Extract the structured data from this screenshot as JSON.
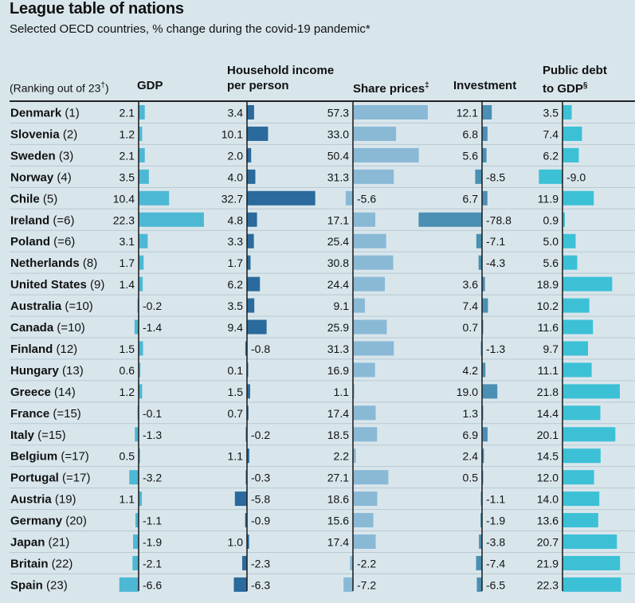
{
  "title": "League table of nations",
  "subtitle": "Selected OECD countries, % change during the covid-19 pandemic*",
  "headers": {
    "rank": "(Ranking out of 23",
    "rank_mark": "†",
    "rank_close": ")",
    "gdp": "GDP",
    "income_line1": "Household income",
    "income_line2": "per person",
    "share": "Share prices",
    "share_mark": "‡",
    "investment": "Investment",
    "debt_line1": "Public debt",
    "debt_line2": "to GDP",
    "debt_mark": "§"
  },
  "colors": {
    "background": "#d8e6ec",
    "gdp": "#4db8d4",
    "income": "#2a6a9c",
    "share": "#8ab9d6",
    "investment": "#4a8fb4",
    "debt": "#3cc0d6",
    "axis": "#222222",
    "row_rule": "#b9c9d2"
  },
  "chart_data": {
    "type": "table",
    "columns": [
      "GDP",
      "Household income per person",
      "Share prices",
      "Investment",
      "Public debt to GDP"
    ],
    "rows": [
      {
        "country": "Denmark",
        "rank": "(1)",
        "gdp": "2.1",
        "income": "3.4",
        "share": "57.3",
        "investment": "12.1",
        "debt": "3.5"
      },
      {
        "country": "Slovenia",
        "rank": "(2)",
        "gdp": "1.2",
        "income": "10.1",
        "share": "33.0",
        "investment": "6.8",
        "debt": "7.4"
      },
      {
        "country": "Sweden",
        "rank": "(3)",
        "gdp": "2.1",
        "income": "2.0",
        "share": "50.4",
        "investment": "5.6",
        "debt": "6.2"
      },
      {
        "country": "Norway",
        "rank": "(4)",
        "gdp": "3.5",
        "income": "4.0",
        "share": "31.3",
        "investment": "-8.5",
        "debt": "-9.0"
      },
      {
        "country": "Chile",
        "rank": "(5)",
        "gdp": "10.4",
        "income": "32.7",
        "share": "-5.6",
        "investment": "6.7",
        "debt": "11.9"
      },
      {
        "country": "Ireland",
        "rank": "(=6)",
        "gdp": "22.3",
        "income": "4.8",
        "share": "17.1",
        "investment": "-78.8",
        "debt": "0.9"
      },
      {
        "country": "Poland",
        "rank": "(=6)",
        "gdp": "3.1",
        "income": "3.3",
        "share": "25.4",
        "investment": "-7.1",
        "debt": "5.0"
      },
      {
        "country": "Netherlands",
        "rank": "(8)",
        "gdp": "1.7",
        "income": "1.7",
        "share": "30.8",
        "investment": "-4.3",
        "debt": "5.6"
      },
      {
        "country": "United States",
        "rank": "(9)",
        "gdp": "1.4",
        "income": "6.2",
        "share": "24.4",
        "investment": "3.6",
        "debt": "18.9"
      },
      {
        "country": "Australia",
        "rank": "(=10)",
        "gdp": "-0.2",
        "income": "3.5",
        "share": "9.1",
        "investment": "7.4",
        "debt": "10.2"
      },
      {
        "country": "Canada",
        "rank": "(=10)",
        "gdp": "-1.4",
        "income": "9.4",
        "share": "25.9",
        "investment": "0.7",
        "debt": "11.6"
      },
      {
        "country": "Finland",
        "rank": "(12)",
        "gdp": "1.5",
        "income": "-0.8",
        "share": "31.3",
        "investment": "-1.3",
        "debt": "9.7"
      },
      {
        "country": "Hungary",
        "rank": "(13)",
        "gdp": "0.6",
        "income": "0.1",
        "share": "16.9",
        "investment": "4.2",
        "debt": "11.1"
      },
      {
        "country": "Greece",
        "rank": "(14)",
        "gdp": "1.2",
        "income": "1.5",
        "share": "1.1",
        "investment": "19.0",
        "debt": "21.8"
      },
      {
        "country": "France",
        "rank": "(=15)",
        "gdp": "-0.1",
        "income": "0.7",
        "share": "17.4",
        "investment": "1.3",
        "debt": "14.4"
      },
      {
        "country": "Italy",
        "rank": "(=15)",
        "gdp": "-1.3",
        "income": "-0.2",
        "share": "18.5",
        "investment": "6.9",
        "debt": "20.1"
      },
      {
        "country": "Belgium",
        "rank": "(=17)",
        "gdp": "0.5",
        "income": "1.1",
        "share": "2.2",
        "investment": "2.4",
        "debt": "14.5"
      },
      {
        "country": "Portugal",
        "rank": "(=17)",
        "gdp": "-3.2",
        "income": "-0.3",
        "share": "27.1",
        "investment": "0.5",
        "debt": "12.0"
      },
      {
        "country": "Austria",
        "rank": "(19)",
        "gdp": "1.1",
        "income": "-5.8",
        "share": "18.6",
        "investment": "-1.1",
        "debt": "14.0"
      },
      {
        "country": "Germany",
        "rank": "(20)",
        "gdp": "-1.1",
        "income": "-0.9",
        "share": "15.6",
        "investment": "-1.9",
        "debt": "13.6"
      },
      {
        "country": "Japan",
        "rank": "(21)",
        "gdp": "-1.9",
        "income": "1.0",
        "share": "17.4",
        "investment": "-3.8",
        "debt": "20.7"
      },
      {
        "country": "Britain",
        "rank": "(22)",
        "gdp": "-2.1",
        "income": "-2.3",
        "share": "-2.2",
        "investment": "-7.4",
        "debt": "21.9"
      },
      {
        "country": "Spain",
        "rank": "(23)",
        "gdp": "-6.6",
        "income": "-6.3",
        "share": "-7.2",
        "investment": "-6.5",
        "debt": "22.3"
      }
    ]
  }
}
